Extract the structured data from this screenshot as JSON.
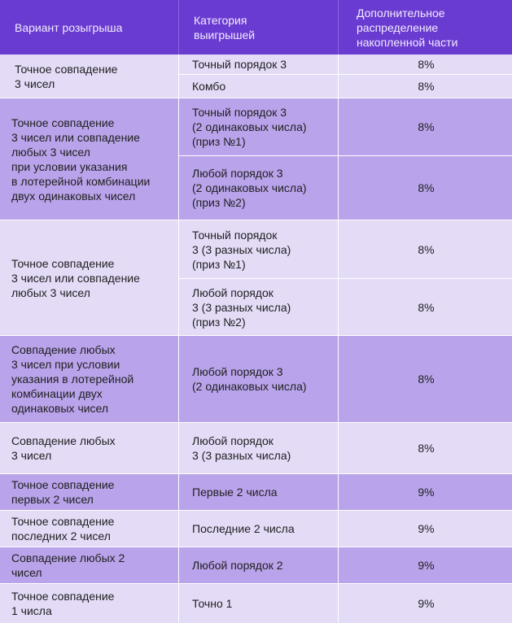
{
  "headers": {
    "variant": "Вариант розыгрыша",
    "category": "Категория\nвыигрышей",
    "distribution": "Дополнительное\nраспределение\nнакопленной части"
  },
  "rows": [
    {
      "variant": "Точное совпадение\n3 чисел",
      "categories": [
        {
          "name": "Точный порядок 3",
          "value": "8%"
        },
        {
          "name": "Комбо",
          "value": "8%"
        }
      ]
    },
    {
      "variant": "Точное совпадение\n3 чисел или совпадение\nлюбых 3 чисел\nпри условии указания\nв лотерейной комбинации\nдвух одинаковых чисел",
      "categories": [
        {
          "name": "Точный порядок 3\n(2 одинаковых числа)\n(приз №1)",
          "value": "8%"
        },
        {
          "name": "Любой порядок 3\n(2 одинаковых числа)\n(приз №2)",
          "value": "8%"
        }
      ]
    },
    {
      "variant": "Точное совпадение\n3 чисел или совпадение\nлюбых 3 чисел",
      "categories": [
        {
          "name": "Точный порядок\n3 (3 разных числа)\n(приз №1)",
          "value": "8%"
        },
        {
          "name": "Любой порядок\n3 (3 разных числа)\n(приз №2)",
          "value": "8%"
        }
      ]
    },
    {
      "variant": "Совпадение любых\n3 чисел при условии\nуказания в лотерейной\nкомбинации двух\nодинаковых чисел",
      "categories": [
        {
          "name": "Любой порядок 3\n(2 одинаковых числа)",
          "value": "8%"
        }
      ]
    },
    {
      "variant": "Совпадение любых\n3 чисел",
      "categories": [
        {
          "name": "Любой порядок\n3 (3 разных числа)",
          "value": "8%"
        }
      ]
    },
    {
      "variant": "Точное совпадение\nпервых 2 чисел",
      "categories": [
        {
          "name": "Первые 2 числа",
          "value": "9%"
        }
      ]
    },
    {
      "variant": "Точное совпадение\nпоследних 2 чисел",
      "categories": [
        {
          "name": "Последние 2 числа",
          "value": "9%"
        }
      ]
    },
    {
      "variant": "Совпадение любых 2\nчисел",
      "categories": [
        {
          "name": "Любой порядок 2",
          "value": "9%"
        }
      ]
    },
    {
      "variant": "Точное совпадение\n1 числа",
      "categories": [
        {
          "name": "Точно 1",
          "value": "9%"
        }
      ]
    }
  ],
  "colors": {
    "header": "#6a3bd0",
    "row_light": "#e4dbf7",
    "row_dark": "#b9a3ea"
  }
}
